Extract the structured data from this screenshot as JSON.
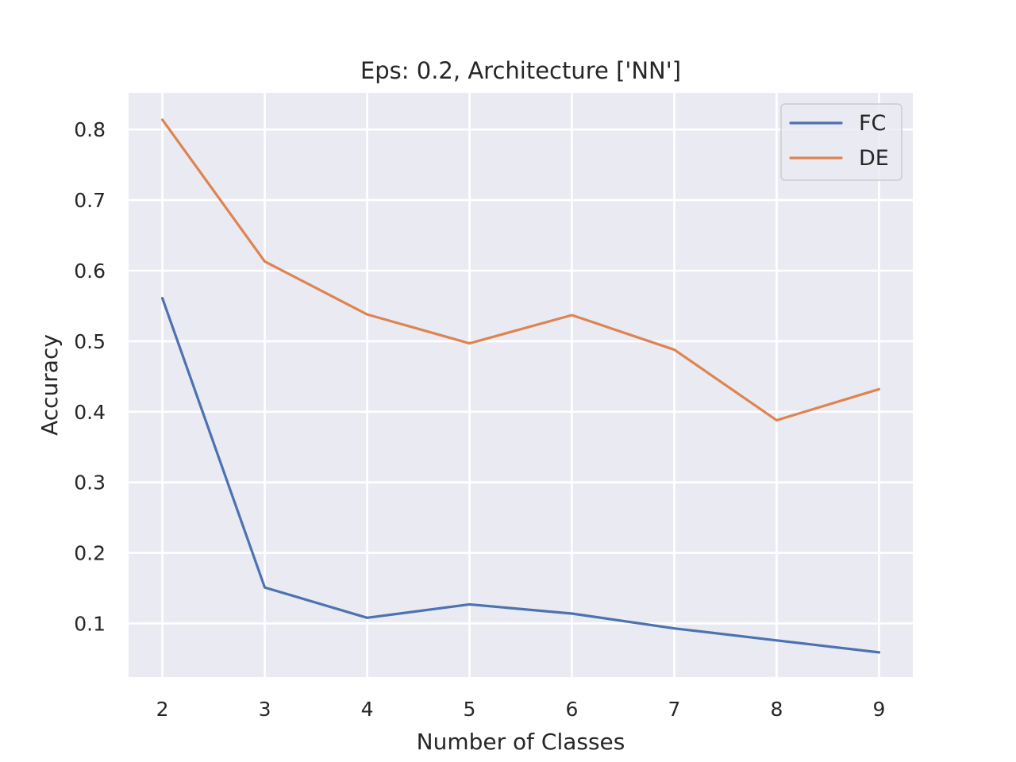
{
  "chart_data": {
    "type": "line",
    "title": "Eps: 0.2, Architecture ['NN']",
    "xlabel": "Number of Classes",
    "ylabel": "Accuracy",
    "x": [
      2,
      3,
      4,
      5,
      6,
      7,
      8,
      9
    ],
    "x_ticks": [
      "2",
      "3",
      "4",
      "5",
      "6",
      "7",
      "8",
      "9"
    ],
    "y_ticks": [
      "0.1",
      "0.2",
      "0.3",
      "0.4",
      "0.5",
      "0.6",
      "0.7",
      "0.8"
    ],
    "xlim": [
      1.67,
      9.33
    ],
    "ylim": [
      0.024,
      0.852
    ],
    "grid": true,
    "legend_position": "top-right",
    "background": "#eaeaf2",
    "series": [
      {
        "name": "FC",
        "color": "#4c72b0",
        "values": [
          0.561,
          0.151,
          0.108,
          0.127,
          0.114,
          0.093,
          0.076,
          0.059
        ]
      },
      {
        "name": "DE",
        "color": "#dd8452",
        "values": [
          0.814,
          0.613,
          0.538,
          0.497,
          0.537,
          0.488,
          0.388,
          0.432
        ]
      }
    ]
  }
}
